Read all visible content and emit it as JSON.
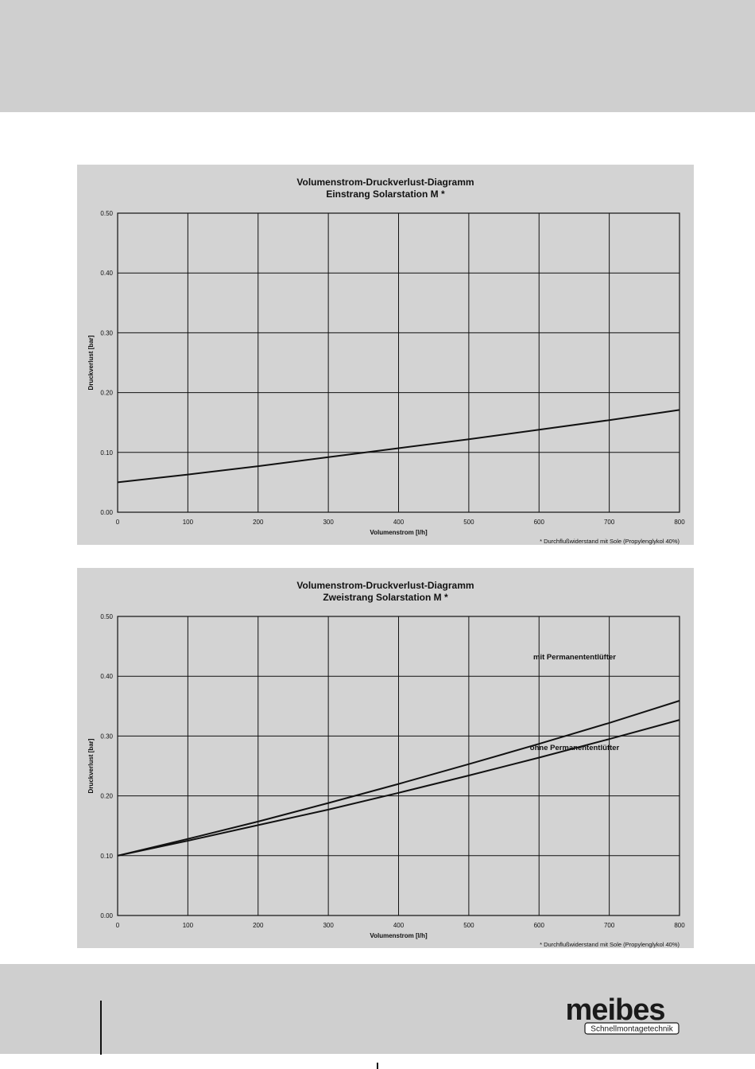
{
  "chart_data": [
    {
      "type": "line",
      "title": "Volumenstrom-Druckverlust-Diagramm",
      "subtitle": "Einstrang Solarstation M *",
      "xlabel": "Volumenstrom [l/h]",
      "ylabel": "Druckverlust [bar]",
      "footnote": "* Durchflußwiderstand mit Sole (Propylenglykol 40%)",
      "xlim": [
        0,
        800
      ],
      "ylim": [
        0,
        0.5
      ],
      "x_ticks": [
        "0",
        "100",
        "200",
        "300",
        "400",
        "500",
        "600",
        "700",
        "800"
      ],
      "y_ticks": [
        "0.00",
        "0.10",
        "0.20",
        "0.30",
        "0.40",
        "0.50"
      ],
      "grid": true,
      "x": [
        0,
        100,
        200,
        300,
        400,
        500,
        600,
        700,
        800
      ],
      "series": [
        {
          "values": [
            0.05,
            0.063,
            0.077,
            0.092,
            0.107,
            0.122,
            0.138,
            0.154,
            0.171
          ]
        }
      ]
    },
    {
      "type": "line",
      "title": "Volumenstrom-Druckverlust-Diagramm",
      "subtitle": "Zweistrang Solarstation M *",
      "xlabel": "Volumenstrom [l/h]",
      "ylabel": "Druckverlust [bar]",
      "footnote": "* Durchflußwiderstand mit Sole (Propylenglykol 40%)",
      "xlim": [
        0,
        800
      ],
      "ylim": [
        0,
        0.5
      ],
      "x_ticks": [
        "0",
        "100",
        "200",
        "300",
        "400",
        "500",
        "600",
        "700",
        "800"
      ],
      "y_ticks": [
        "0.00",
        "0.10",
        "0.20",
        "0.30",
        "0.40",
        "0.50"
      ],
      "grid": true,
      "x": [
        0,
        100,
        200,
        300,
        400,
        500,
        600,
        700,
        800
      ],
      "series": [
        {
          "name": "mit Permanententlüfter",
          "values": [
            0.1,
            0.128,
            0.157,
            0.188,
            0.22,
            0.253,
            0.287,
            0.322,
            0.359
          ]
        },
        {
          "name": "ohne Permanententlüfter",
          "values": [
            0.1,
            0.125,
            0.151,
            0.177,
            0.205,
            0.234,
            0.264,
            0.295,
            0.327
          ]
        }
      ]
    }
  ],
  "logo": {
    "text": "meibes",
    "tagline": "Schnellmontagetechnik"
  },
  "colors": {
    "band": "#cfcfcf",
    "panel": "#d3d3d3",
    "line": "#111111"
  }
}
